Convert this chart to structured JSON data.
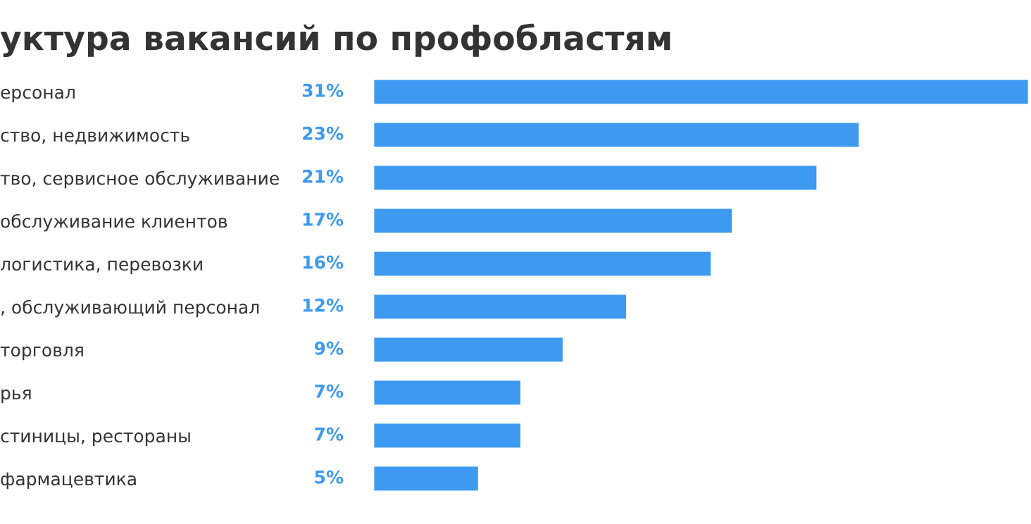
{
  "chart_data": {
    "type": "bar",
    "orientation": "horizontal",
    "title": "уктура вакансий по профобластям",
    "categories": [
      "ерсонал",
      "ство, недвижимость",
      "тво, сервисное обслуживание",
      "обслуживание клиентов",
      "логистика, перевозки",
      ", обслуживающий персонал",
      "торговля",
      "рья",
      "стиницы, рестораны",
      "фармацевтика"
    ],
    "values": [
      31,
      23,
      21,
      17,
      16,
      12,
      9,
      7,
      7,
      5
    ],
    "value_labels": [
      "31%",
      "23%",
      "21%",
      "17%",
      "16%",
      "12%",
      "9%",
      "7%",
      "7%",
      "5%"
    ],
    "color": "#3d9af0",
    "xlim": [
      0,
      31
    ],
    "grid": false,
    "legend": false
  }
}
